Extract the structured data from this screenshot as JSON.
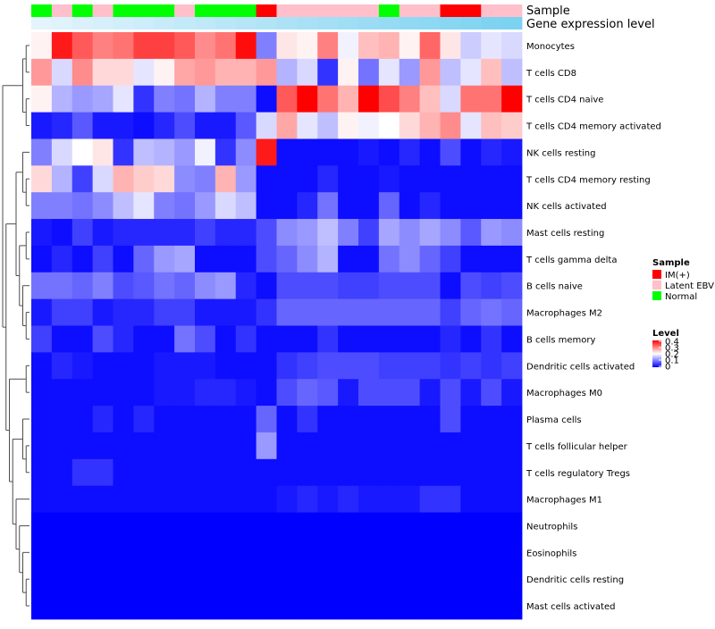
{
  "chart_data": {
    "type": "heatmap",
    "annotation_tracks": [
      "Sample",
      "Gene expression level"
    ],
    "row_labels": [
      "Monocytes",
      "T cells CD8",
      "T cells CD4 naive",
      "T cells CD4 memory activated",
      "NK cells resting",
      "T cells CD4 memory resting",
      "NK cells activated",
      "Mast cells resting",
      "T cells gamma delta",
      "B cells naive",
      "Macrophages M2",
      "B cells memory",
      "Dendritic cells activated",
      "Macrophages M0",
      "Plasma cells",
      "T cells follicular helper",
      "T cells regulatory  Tregs",
      "Macrophages M1",
      "Neutrophils",
      "Eosinophils",
      "Dendritic cells resting",
      "Mast cells activated"
    ],
    "sample_groups": [
      "Normal",
      "Latent EBV",
      "Normal",
      "Latent EBV",
      "Normal",
      "Normal",
      "Normal",
      "Latent EBV",
      "Normal",
      "Normal",
      "Normal",
      "IM(+)",
      "Latent EBV",
      "Latent EBV",
      "Latent EBV",
      "Latent EBV",
      "Latent EBV",
      "Normal",
      "Latent EBV",
      "Latent EBV",
      "IM(+)",
      "IM(+)",
      "Latent EBV",
      "Latent EBV"
    ],
    "expression_level": [
      0.02,
      0.05,
      0.08,
      0.11,
      0.14,
      0.17,
      0.2,
      0.23,
      0.26,
      0.29,
      0.32,
      0.35,
      0.38,
      0.41,
      0.44,
      0.47,
      0.5,
      0.53,
      0.56,
      0.59,
      0.62,
      0.65,
      0.68,
      0.71
    ],
    "values": [
      [
        0.21,
        0.38,
        0.33,
        0.3,
        0.31,
        0.35,
        0.35,
        0.33,
        0.29,
        0.31,
        0.39,
        0.1,
        0.22,
        0.21,
        0.3,
        0.19,
        0.25,
        0.26,
        0.21,
        0.32,
        0.22,
        0.16,
        0.18,
        0.17
      ],
      [
        0.28,
        0.17,
        0.29,
        0.23,
        0.23,
        0.18,
        0.21,
        0.27,
        0.28,
        0.26,
        0.26,
        0.28,
        0.14,
        0.17,
        0.04,
        0.21,
        0.09,
        0.18,
        0.12,
        0.28,
        0.15,
        0.18,
        0.25,
        0.15
      ],
      [
        0.21,
        0.14,
        0.12,
        0.13,
        0.18,
        0.04,
        0.1,
        0.09,
        0.14,
        0.1,
        0.1,
        0.01,
        0.33,
        0.4,
        0.31,
        0.26,
        0.4,
        0.34,
        0.3,
        0.25,
        0.17,
        0.31,
        0.31,
        0.4
      ],
      [
        0.02,
        0.03,
        0.07,
        0.02,
        0.02,
        0.01,
        0.03,
        0.06,
        0.02,
        0.02,
        0.07,
        0.17,
        0.27,
        0.18,
        0.15,
        0.21,
        0.19,
        0.2,
        0.23,
        0.26,
        0.29,
        0.18,
        0.25,
        0.24
      ],
      [
        0.1,
        0.17,
        0.2,
        0.22,
        0.04,
        0.15,
        0.14,
        0.12,
        0.19,
        0.04,
        0.11,
        0.38,
        0.01,
        0.01,
        0.01,
        0.01,
        0.02,
        0.01,
        0.03,
        0.01,
        0.06,
        0.01,
        0.03,
        0.02
      ],
      [
        0.23,
        0.14,
        0.05,
        0.17,
        0.26,
        0.24,
        0.23,
        0.11,
        0.1,
        0.26,
        0.12,
        0.01,
        0.01,
        0.01,
        0.03,
        0.01,
        0.01,
        0.02,
        0.01,
        0.01,
        0.01,
        0.01,
        0.01,
        0.01
      ],
      [
        0.1,
        0.1,
        0.09,
        0.11,
        0.15,
        0.18,
        0.1,
        0.09,
        0.12,
        0.17,
        0.15,
        0.01,
        0.01,
        0.03,
        0.09,
        0.01,
        0.01,
        0.08,
        0.01,
        0.03,
        0.01,
        0.01,
        0.01,
        0.01
      ],
      [
        0.02,
        0.01,
        0.05,
        0.02,
        0.03,
        0.03,
        0.03,
        0.03,
        0.05,
        0.03,
        0.03,
        0.06,
        0.11,
        0.12,
        0.15,
        0.1,
        0.05,
        0.13,
        0.11,
        0.13,
        0.11,
        0.07,
        0.12,
        0.11
      ],
      [
        0.01,
        0.03,
        0.01,
        0.05,
        0.01,
        0.08,
        0.12,
        0.13,
        0.01,
        0.01,
        0.01,
        0.06,
        0.08,
        0.11,
        0.14,
        0.01,
        0.01,
        0.09,
        0.11,
        0.08,
        0.05,
        0.01,
        0.01,
        0.01
      ],
      [
        0.09,
        0.09,
        0.08,
        0.1,
        0.06,
        0.07,
        0.09,
        0.08,
        0.11,
        0.12,
        0.03,
        0.01,
        0.06,
        0.06,
        0.06,
        0.05,
        0.05,
        0.06,
        0.06,
        0.06,
        0.01,
        0.06,
        0.05,
        0.06
      ],
      [
        0.02,
        0.05,
        0.05,
        0.02,
        0.03,
        0.03,
        0.05,
        0.05,
        0.02,
        0.02,
        0.02,
        0.04,
        0.08,
        0.08,
        0.08,
        0.08,
        0.08,
        0.08,
        0.08,
        0.08,
        0.05,
        0.08,
        0.09,
        0.08
      ],
      [
        0.05,
        0.01,
        0.01,
        0.06,
        0.03,
        0.01,
        0.01,
        0.09,
        0.06,
        0.01,
        0.04,
        0.01,
        0.01,
        0.01,
        0.04,
        0.01,
        0.01,
        0.01,
        0.01,
        0.01,
        0.03,
        0.01,
        0.04,
        0.01
      ],
      [
        0.01,
        0.03,
        0.02,
        0.01,
        0.01,
        0.01,
        0.02,
        0.02,
        0.02,
        0.01,
        0.01,
        0.01,
        0.04,
        0.05,
        0.06,
        0.06,
        0.06,
        0.05,
        0.05,
        0.05,
        0.04,
        0.05,
        0.04,
        0.05
      ],
      [
        0.01,
        0.01,
        0.01,
        0.01,
        0.01,
        0.01,
        0.02,
        0.02,
        0.03,
        0.03,
        0.02,
        0.01,
        0.06,
        0.08,
        0.07,
        0.02,
        0.06,
        0.06,
        0.06,
        0.02,
        0.06,
        0.02,
        0.06,
        0.02
      ],
      [
        0.01,
        0.01,
        0.01,
        0.03,
        0.01,
        0.03,
        0.01,
        0.01,
        0.01,
        0.01,
        0.01,
        0.08,
        0.01,
        0.04,
        0.01,
        0.01,
        0.01,
        0.01,
        0.01,
        0.01,
        0.06,
        0.01,
        0.01,
        0.01
      ],
      [
        0.01,
        0.01,
        0.01,
        0.01,
        0.01,
        0.01,
        0.01,
        0.01,
        0.01,
        0.01,
        0.01,
        0.12,
        0.01,
        0.01,
        0.01,
        0.01,
        0.01,
        0.01,
        0.01,
        0.01,
        0.01,
        0.01,
        0.01,
        0.01
      ],
      [
        0.01,
        0.01,
        0.04,
        0.04,
        0.01,
        0.01,
        0.01,
        0.01,
        0.01,
        0.01,
        0.01,
        0.01,
        0.01,
        0.01,
        0.01,
        0.01,
        0.01,
        0.01,
        0.01,
        0.01,
        0.01,
        0.01,
        0.01,
        0.01
      ],
      [
        0.01,
        0.01,
        0.01,
        0.01,
        0.01,
        0.01,
        0.01,
        0.01,
        0.01,
        0.01,
        0.01,
        0.01,
        0.02,
        0.03,
        0.02,
        0.03,
        0.02,
        0.02,
        0.02,
        0.04,
        0.04,
        0.01,
        0.01,
        0.01
      ],
      [
        0.0,
        0.0,
        0.0,
        0.0,
        0.0,
        0.0,
        0.0,
        0.0,
        0.0,
        0.0,
        0.0,
        0.0,
        0.0,
        0.0,
        0.0,
        0.0,
        0.0,
        0.0,
        0.0,
        0.0,
        0.0,
        0.0,
        0.0,
        0.0
      ],
      [
        0.0,
        0.0,
        0.0,
        0.0,
        0.0,
        0.0,
        0.0,
        0.0,
        0.0,
        0.0,
        0.0,
        0.0,
        0.0,
        0.0,
        0.0,
        0.0,
        0.0,
        0.0,
        0.0,
        0.0,
        0.0,
        0.0,
        0.0,
        0.0
      ],
      [
        0.0,
        0.0,
        0.0,
        0.0,
        0.0,
        0.0,
        0.0,
        0.0,
        0.0,
        0.0,
        0.0,
        0.0,
        0.0,
        0.0,
        0.0,
        0.0,
        0.0,
        0.0,
        0.0,
        0.0,
        0.0,
        0.0,
        0.0,
        0.0
      ],
      [
        0.0,
        0.0,
        0.0,
        0.0,
        0.0,
        0.0,
        0.0,
        0.0,
        0.0,
        0.0,
        0.0,
        0.0,
        0.0,
        0.0,
        0.0,
        0.0,
        0.0,
        0.0,
        0.0,
        0.0,
        0.0,
        0.0,
        0.0,
        0.0
      ]
    ],
    "legend": {
      "sample_title": "Sample",
      "sample_entries": [
        {
          "label": "IM(+)",
          "color": "#ff0000"
        },
        {
          "label": "Latent EBV",
          "color": "#ffc0cb"
        },
        {
          "label": "Normal",
          "color": "#00ff00"
        }
      ],
      "level_title": "Level",
      "level_ticks": [
        "0.4",
        "0.3",
        "0.2",
        "0.1",
        "0"
      ],
      "level_range": [
        0,
        0.4
      ]
    },
    "colors": {
      "low": "#0000ff",
      "mid": "#ffffff",
      "high": "#ff0000",
      "expr_low": "#e6f5fc",
      "expr_high": "#4fc3ec",
      "dendrogram": "#4d4d4d"
    }
  }
}
